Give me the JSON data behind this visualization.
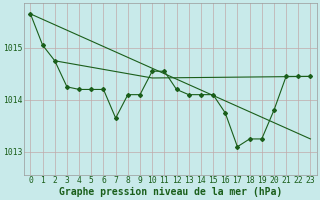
{
  "title": "Graphe pression niveau de la mer (hPa)",
  "xlabel_ticks": [
    "0",
    "1",
    "2",
    "3",
    "4",
    "5",
    "6",
    "7",
    "8",
    "9",
    "10",
    "11",
    "12",
    "13",
    "14",
    "15",
    "16",
    "17",
    "18",
    "19",
    "20",
    "21",
    "22",
    "23"
  ],
  "yticks": [
    1013,
    1014,
    1015
  ],
  "ylim": [
    1012.55,
    1015.85
  ],
  "xlim": [
    -0.5,
    23.5
  ],
  "bg_color": "#c8eaea",
  "grid_color": "#b0c8c8",
  "line_color": "#1a5e1a",
  "text_color": "#1a5e1a",
  "data_x": [
    0,
    1,
    2,
    3,
    4,
    5,
    6,
    7,
    8,
    9,
    10,
    11,
    12,
    13,
    14,
    15,
    16,
    17,
    18,
    19,
    20,
    21,
    22,
    23
  ],
  "data_y": [
    1015.65,
    1015.05,
    1014.75,
    1014.25,
    1014.2,
    1014.2,
    1014.2,
    1013.65,
    1014.1,
    1014.1,
    1014.55,
    1014.55,
    1014.2,
    1014.1,
    1014.1,
    1014.1,
    1013.75,
    1013.1,
    1013.25,
    1013.25,
    1013.8,
    1014.45,
    1014.45,
    1014.45
  ],
  "trend1_x": [
    0,
    23
  ],
  "trend1_y": [
    1015.65,
    1013.25
  ],
  "trend2_x": [
    2,
    10,
    23
  ],
  "trend2_y": [
    1014.75,
    1014.42,
    1014.45
  ],
  "font_size_title": 7.0,
  "font_size_ticks": 5.8
}
